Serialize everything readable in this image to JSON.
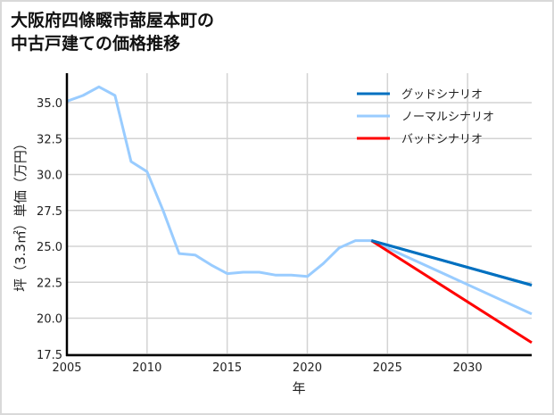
{
  "title_line1": "大阪府四條畷市蔀屋本町の",
  "title_line2": "中古戸建ての価格推移",
  "chart_data": {
    "type": "line",
    "title": "大阪府四條畷市蔀屋本町の中古戸建ての価格推移",
    "xlabel": "年",
    "ylabel": "坪（3.3㎡）単価（万円）",
    "xlim": [
      2005,
      2034
    ],
    "ylim": [
      17.5,
      36.8
    ],
    "xticks": [
      2005,
      2010,
      2015,
      2020,
      2025,
      2030
    ],
    "yticks": [
      "17.5",
      "20.0",
      "22.5",
      "25.0",
      "27.5",
      "30.0",
      "32.5",
      "35.0"
    ],
    "grid": true,
    "legend_position": "upper right",
    "series": [
      {
        "name": "グッドシナリオ",
        "color": "#0070c0",
        "x": [
          2024,
          2034
        ],
        "y": [
          25.4,
          22.3
        ]
      },
      {
        "name": "ノーマルシナリオ",
        "color": "#99ccff",
        "x": [
          2005,
          2006,
          2007,
          2008,
          2009,
          2010,
          2011,
          2012,
          2013,
          2014,
          2015,
          2016,
          2017,
          2018,
          2019,
          2020,
          2021,
          2022,
          2023,
          2024,
          2034
        ],
        "y": [
          35.1,
          35.5,
          36.1,
          35.5,
          30.9,
          30.2,
          27.5,
          24.5,
          24.4,
          23.7,
          23.1,
          23.2,
          23.2,
          23.0,
          23.0,
          22.9,
          23.8,
          24.9,
          25.4,
          25.4,
          20.3
        ]
      },
      {
        "name": "バッドシナリオ",
        "color": "#ff0000",
        "x": [
          2024,
          2034
        ],
        "y": [
          25.4,
          18.3
        ]
      }
    ]
  }
}
